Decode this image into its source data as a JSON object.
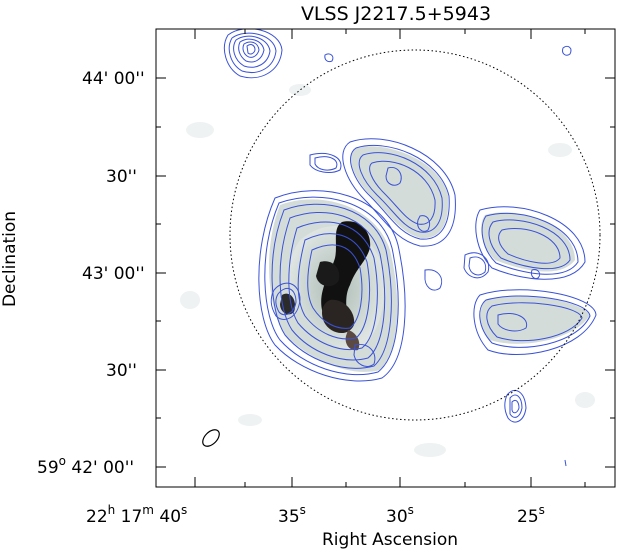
{
  "figure": {
    "title": "VLSS J2217.5+5943",
    "xlabel": "Right Ascension",
    "ylabel": "Declination",
    "x_ticks": [
      {
        "main": "22",
        "sup1": "h",
        "mid": " 17",
        "sup2": "m",
        "sec": " 40",
        "sup3": "s"
      },
      {
        "sec": "35",
        "sup3": "s"
      },
      {
        "sec": "30",
        "sup3": "s"
      },
      {
        "sec": "25",
        "sup3": "s"
      }
    ],
    "y_ticks": [
      {
        "text": "44' 00''"
      },
      {
        "text": "30''"
      },
      {
        "text": "43' 00''"
      },
      {
        "text": "30''"
      },
      {
        "deg": "59",
        "sup": "o",
        "text": " 42' 00''"
      }
    ],
    "colors": {
      "contour": "#3a52d6",
      "greyscale_light": "#c9d3cf",
      "greyscale_dark": "#111111",
      "frame": "#000000"
    },
    "elements": [
      "contour map",
      "greyscale intensity image",
      "dotted circle",
      "beam ellipse"
    ]
  }
}
